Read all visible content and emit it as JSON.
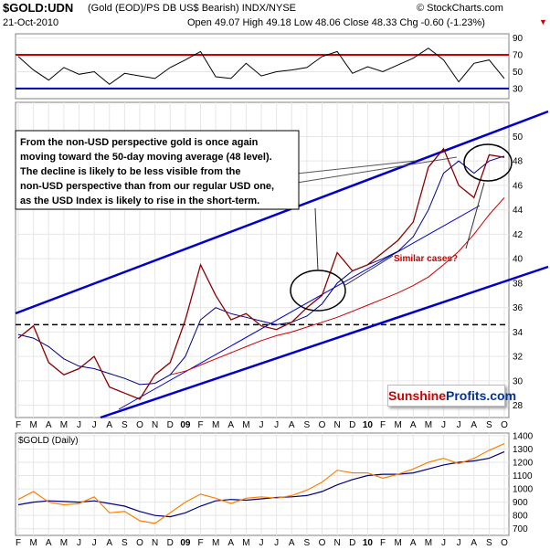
{
  "header": {
    "symbol": "$GOLD:UDN",
    "description": "(Gold (EOD)/PS DB US$ Bearish)  INDX/NYSE",
    "credit": "© StockCharts.com",
    "date": "21-Oct-2010",
    "quote": "Open 49.07  High 49.18  Low 48.06  Close 48.33  Chg -0.60 (-1.23%)"
  },
  "annotation": {
    "lines": [
      "From the non-USD perspective gold is once again",
      "moving toward the 50-day moving average (48 level).",
      "The decline is likely to be less visible from the",
      "non-USD perspective than from our regular USD one,",
      "as the USD Index is likely to rise in the short-term."
    ],
    "similar_cases": "Similar cases?"
  },
  "logo": {
    "part1": "Sunshine",
    "part2": "Profits.com"
  },
  "colors": {
    "price": "#8b0000",
    "ma50": "#000080",
    "ma200": "#cc0000",
    "trend": "#0000cc",
    "rsi": "#000000",
    "rsi_upper": "#cc0000",
    "rsi_lower": "#0000aa",
    "gold_usd": "#ff7f00",
    "gold_ma": "#000080"
  },
  "chart_data": [
    {
      "type": "line",
      "panel": "RSI",
      "y_ticks": [
        30,
        50,
        70,
        90
      ],
      "ylim": [
        18,
        95
      ],
      "levels": [
        30,
        70
      ],
      "x": [
        "2008-02",
        "2008-03",
        "2008-04",
        "2008-05",
        "2008-06",
        "2008-07",
        "2008-08",
        "2008-09",
        "2008-10",
        "2008-11",
        "2008-12",
        "2009-01",
        "2009-02",
        "2009-03",
        "2009-04",
        "2009-05",
        "2009-06",
        "2009-07",
        "2009-08",
        "2009-09",
        "2009-10",
        "2009-11",
        "2009-12",
        "2010-01",
        "2010-02",
        "2010-03",
        "2010-04",
        "2010-05",
        "2010-06",
        "2010-07",
        "2010-08",
        "2010-09",
        "2010-10"
      ],
      "values": [
        68,
        52,
        40,
        55,
        47,
        50,
        35,
        48,
        45,
        42,
        55,
        64,
        74,
        44,
        42,
        60,
        45,
        50,
        52,
        55,
        68,
        74,
        48,
        56,
        50,
        58,
        66,
        78,
        64,
        38,
        60,
        64,
        42
      ]
    },
    {
      "type": "line",
      "panel": "Gold:UDN ratio",
      "y_ticks": [
        28,
        30,
        32,
        34,
        36,
        38,
        40,
        42,
        44,
        46,
        48,
        50
      ],
      "ylim": [
        27,
        52.8
      ],
      "x_ticks": [
        "F",
        "M",
        "A",
        "M",
        "J",
        "J",
        "A",
        "S",
        "O",
        "N",
        "D",
        "09",
        "F",
        "M",
        "A",
        "M",
        "J",
        "J",
        "A",
        "S",
        "O",
        "N",
        "D",
        "10",
        "F",
        "M",
        "A",
        "M",
        "J",
        "J",
        "A",
        "S",
        "O"
      ],
      "x": [
        "2008-02",
        "2008-03",
        "2008-04",
        "2008-05",
        "2008-06",
        "2008-07",
        "2008-08",
        "2008-09",
        "2008-10",
        "2008-11",
        "2008-12",
        "2009-01",
        "2009-02",
        "2009-03",
        "2009-04",
        "2009-05",
        "2009-06",
        "2009-07",
        "2009-08",
        "2009-09",
        "2009-10",
        "2009-11",
        "2009-12",
        "2010-01",
        "2010-02",
        "2010-03",
        "2010-04",
        "2010-05",
        "2010-06",
        "2010-07",
        "2010-08",
        "2010-09",
        "2010-10"
      ],
      "series": [
        {
          "values": [
            33.5,
            34.5,
            31.5,
            30.5,
            31,
            32,
            29.5,
            29,
            28.5,
            30.5,
            31.5,
            35,
            39.5,
            37,
            35,
            35.5,
            34.5,
            34.2,
            34.8,
            36,
            37,
            40.5,
            39,
            39.5,
            40.5,
            41.5,
            43,
            47.5,
            49,
            46,
            45,
            48.5,
            48.3
          ]
        },
        {
          "values": [
            33.8,
            33.5,
            32.8,
            31.8,
            31.2,
            31,
            30.6,
            30.2,
            29.7,
            29.8,
            30.5,
            32,
            35,
            36,
            35.5,
            35.2,
            34.9,
            34.6,
            34.8,
            35.3,
            36.3,
            38,
            39,
            39.5,
            40,
            40.6,
            41.8,
            44,
            47,
            48,
            47,
            48,
            48.4
          ]
        },
        {
          "values": [
            null,
            null,
            null,
            null,
            null,
            null,
            null,
            null,
            null,
            null,
            30.5,
            30.8,
            31.3,
            31.8,
            32.3,
            32.8,
            33.3,
            33.7,
            34.0,
            34.4,
            34.8,
            35.2,
            35.7,
            36.2,
            36.7,
            37.2,
            37.8,
            38.5,
            39.5,
            40.6,
            42,
            43.6,
            45
          ]
        }
      ],
      "reference_level": 34.6
    },
    {
      "type": "line",
      "panel": "$GOLD (Daily)",
      "title": "$GOLD (Daily)",
      "y_ticks": [
        700,
        800,
        900,
        1000,
        1100,
        1200,
        1300,
        1400
      ],
      "ylim": [
        650,
        1420
      ],
      "x_ticks": [
        "F",
        "M",
        "A",
        "M",
        "J",
        "J",
        "A",
        "S",
        "O",
        "N",
        "D",
        "09",
        "F",
        "M",
        "A",
        "M",
        "J",
        "J",
        "A",
        "S",
        "O",
        "N",
        "D",
        "10",
        "F",
        "M",
        "A",
        "M",
        "J",
        "J",
        "A",
        "S",
        "O"
      ],
      "x": [
        "2008-02",
        "2008-03",
        "2008-04",
        "2008-05",
        "2008-06",
        "2008-07",
        "2008-08",
        "2008-09",
        "2008-10",
        "2008-11",
        "2008-12",
        "2009-01",
        "2009-02",
        "2009-03",
        "2009-04",
        "2009-05",
        "2009-06",
        "2009-07",
        "2009-08",
        "2009-09",
        "2009-10",
        "2009-11",
        "2009-12",
        "2010-01",
        "2010-02",
        "2010-03",
        "2010-04",
        "2010-05",
        "2010-06",
        "2010-07",
        "2010-08",
        "2010-09",
        "2010-10"
      ],
      "series": [
        {
          "values": [
            920,
            980,
            900,
            880,
            890,
            940,
            820,
            830,
            760,
            740,
            820,
            900,
            960,
            930,
            890,
            930,
            940,
            930,
            950,
            990,
            1050,
            1140,
            1120,
            1120,
            1080,
            1110,
            1150,
            1200,
            1230,
            1190,
            1230,
            1290,
            1340
          ]
        },
        {
          "values": [
            880,
            900,
            910,
            905,
            900,
            910,
            890,
            870,
            830,
            800,
            790,
            820,
            870,
            910,
            920,
            915,
            925,
            935,
            940,
            950,
            980,
            1030,
            1070,
            1100,
            1110,
            1110,
            1120,
            1150,
            1180,
            1200,
            1210,
            1230,
            1280
          ]
        }
      ]
    }
  ]
}
